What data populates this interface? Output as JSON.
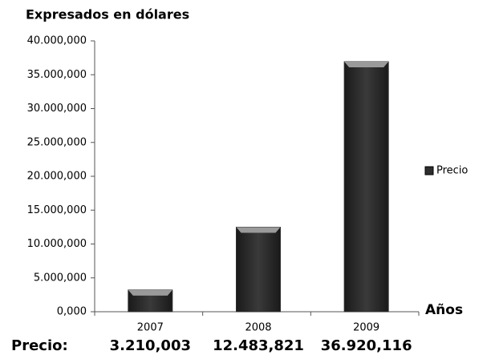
{
  "chart_data": {
    "type": "bar",
    "title": "Expresados en dólares",
    "categories": [
      "2007",
      "2008",
      "2009"
    ],
    "series": [
      {
        "name": "Precio",
        "color": "#2e2e2e",
        "values": [
          3210003,
          12483821,
          36920116
        ],
        "value_labels": [
          "3.210,003",
          "12.483,821",
          "36.920,116"
        ]
      }
    ],
    "x_label": "Años",
    "table_label": "Precio:",
    "ylim": [
      0,
      40000000
    ],
    "yticks": [
      {
        "value": 0,
        "label": "0,000"
      },
      {
        "value": 5000000,
        "label": "5.000,000"
      },
      {
        "value": 10000000,
        "label": "10.000,000"
      },
      {
        "value": 15000000,
        "label": "15.000,000"
      },
      {
        "value": 20000000,
        "label": "20.000,000"
      },
      {
        "value": 25000000,
        "label": "25.000,000"
      },
      {
        "value": 30000000,
        "label": "30.000,000"
      },
      {
        "value": 35000000,
        "label": "35.000,000"
      },
      {
        "value": 40000000,
        "label": "40.000,000"
      }
    ],
    "legend": "right",
    "grid": false
  }
}
